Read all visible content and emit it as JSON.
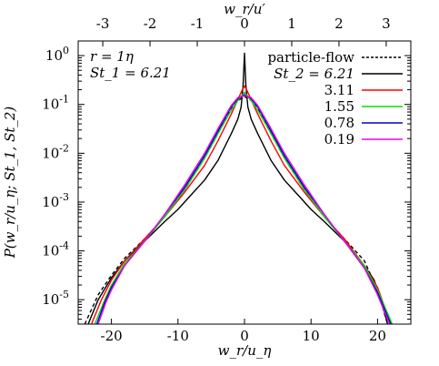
{
  "chart_data": {
    "type": "line",
    "xlabel": "w_r/u_η",
    "xlabel_top": "w_r/u′",
    "ylabel": "P(w_r/u_η; St_1, St_2)",
    "xlim": [
      -25,
      25
    ],
    "ylim_log10": [
      -5.5,
      0.3
    ],
    "y_scale": "log",
    "x_ticks": [
      -20,
      -10,
      0,
      10,
      20
    ],
    "x_tick_labels": [
      "-20",
      "-10",
      "0",
      "10",
      "20"
    ],
    "top_ticks": [
      -3,
      -2,
      -1,
      0,
      1,
      2,
      3
    ],
    "top_tick_labels": [
      "-3",
      "-2",
      "-1",
      "0",
      "1",
      "2",
      "3"
    ],
    "top_scale_ratio": 7.1,
    "y_ticks": [
      0,
      -1,
      -2,
      -3,
      -4,
      -5
    ],
    "y_tick_labels": [
      "10^0",
      "10^-1",
      "10^-2",
      "10^-3",
      "10^-4",
      "10^-5"
    ],
    "annotations": [
      "r = 1η",
      "St_1 = 6.21"
    ],
    "legend_title": "St_2 = ",
    "legend_position": "top-right",
    "series": [
      {
        "name": "particle-flow",
        "color": "#000000",
        "dashed": true,
        "points": [
          [
            -24,
            -5.5
          ],
          [
            -22,
            -4.9
          ],
          [
            -20,
            -4.5
          ],
          [
            -18,
            -4.15
          ],
          [
            -15,
            -3.75
          ],
          [
            -12,
            -3.3
          ],
          [
            -9,
            -2.75
          ],
          [
            -6,
            -2.1
          ],
          [
            -4,
            -1.6
          ],
          [
            -2,
            -1.1
          ],
          [
            -1,
            -0.92
          ],
          [
            0,
            -0.84
          ],
          [
            1,
            -0.92
          ],
          [
            2,
            -1.1
          ],
          [
            4,
            -1.6
          ],
          [
            6,
            -2.1
          ],
          [
            9,
            -2.75
          ],
          [
            12,
            -3.3
          ],
          [
            15,
            -3.75
          ],
          [
            18,
            -4.2
          ],
          [
            20,
            -4.8
          ],
          [
            21.5,
            -5.5
          ]
        ]
      },
      {
        "name": "6.21",
        "color": "#000000",
        "dashed": false,
        "points": [
          [
            -23.5,
            -5.5
          ],
          [
            -22,
            -5.0
          ],
          [
            -20,
            -4.55
          ],
          [
            -18,
            -4.2
          ],
          [
            -15,
            -3.8
          ],
          [
            -12,
            -3.4
          ],
          [
            -10,
            -3.15
          ],
          [
            -8,
            -2.85
          ],
          [
            -6,
            -2.55
          ],
          [
            -4,
            -2.15
          ],
          [
            -2,
            -1.6
          ],
          [
            -1,
            -1.3
          ],
          [
            -0.5,
            -1.05
          ],
          [
            -0.2,
            -0.6
          ],
          [
            0,
            0.05
          ],
          [
            0.2,
            -0.6
          ],
          [
            0.5,
            -1.05
          ],
          [
            1,
            -1.3
          ],
          [
            2,
            -1.6
          ],
          [
            4,
            -2.15
          ],
          [
            6,
            -2.55
          ],
          [
            8,
            -2.85
          ],
          [
            10,
            -3.15
          ],
          [
            12,
            -3.4
          ],
          [
            15,
            -3.8
          ],
          [
            18,
            -4.3
          ],
          [
            19.5,
            -4.6
          ],
          [
            20.5,
            -5.0
          ],
          [
            21.5,
            -5.5
          ]
        ]
      },
      {
        "name": "3.11",
        "color": "#ff0000",
        "dashed": false,
        "points": [
          [
            -23,
            -5.5
          ],
          [
            -21.5,
            -5.0
          ],
          [
            -20,
            -4.6
          ],
          [
            -18,
            -4.2
          ],
          [
            -15,
            -3.75
          ],
          [
            -12,
            -3.3
          ],
          [
            -9,
            -2.8
          ],
          [
            -6,
            -2.25
          ],
          [
            -4,
            -1.75
          ],
          [
            -2,
            -1.2
          ],
          [
            -1,
            -0.9
          ],
          [
            -0.4,
            -0.72
          ],
          [
            0,
            -0.62
          ],
          [
            0.4,
            -0.72
          ],
          [
            1,
            -0.9
          ],
          [
            2,
            -1.2
          ],
          [
            4,
            -1.75
          ],
          [
            6,
            -2.25
          ],
          [
            9,
            -2.8
          ],
          [
            12,
            -3.3
          ],
          [
            15,
            -3.75
          ],
          [
            18,
            -4.3
          ],
          [
            20,
            -4.75
          ],
          [
            22,
            -5.5
          ]
        ]
      },
      {
        "name": "1.55",
        "color": "#00dd00",
        "dashed": false,
        "points": [
          [
            -22.5,
            -5.5
          ],
          [
            -21,
            -5.0
          ],
          [
            -20,
            -4.7
          ],
          [
            -18,
            -4.25
          ],
          [
            -15,
            -3.8
          ],
          [
            -12,
            -3.3
          ],
          [
            -9,
            -2.75
          ],
          [
            -6,
            -2.1
          ],
          [
            -4,
            -1.6
          ],
          [
            -2,
            -1.12
          ],
          [
            -1,
            -0.92
          ],
          [
            0,
            -0.75
          ],
          [
            1,
            -0.92
          ],
          [
            2,
            -1.12
          ],
          [
            4,
            -1.6
          ],
          [
            6,
            -2.1
          ],
          [
            9,
            -2.75
          ],
          [
            12,
            -3.3
          ],
          [
            15,
            -3.8
          ],
          [
            18,
            -4.3
          ],
          [
            20,
            -4.8
          ],
          [
            22.2,
            -5.5
          ]
        ]
      },
      {
        "name": "0.78",
        "color": "#0000cc",
        "dashed": false,
        "points": [
          [
            -22.2,
            -5.5
          ],
          [
            -21,
            -5.05
          ],
          [
            -20,
            -4.75
          ],
          [
            -18,
            -4.3
          ],
          [
            -15,
            -3.8
          ],
          [
            -12,
            -3.25
          ],
          [
            -9,
            -2.7
          ],
          [
            -6,
            -2.05
          ],
          [
            -4,
            -1.55
          ],
          [
            -2,
            -1.05
          ],
          [
            -1,
            -0.88
          ],
          [
            0,
            -0.8
          ],
          [
            1,
            -0.88
          ],
          [
            2,
            -1.05
          ],
          [
            4,
            -1.55
          ],
          [
            6,
            -2.05
          ],
          [
            9,
            -2.7
          ],
          [
            12,
            -3.25
          ],
          [
            15,
            -3.8
          ],
          [
            18,
            -4.35
          ],
          [
            20,
            -4.85
          ],
          [
            22,
            -5.5
          ]
        ]
      },
      {
        "name": "0.19",
        "color": "#ee00ee",
        "dashed": false,
        "points": [
          [
            -22,
            -5.5
          ],
          [
            -20.8,
            -5.05
          ],
          [
            -20,
            -4.8
          ],
          [
            -18,
            -4.3
          ],
          [
            -15,
            -3.8
          ],
          [
            -12,
            -3.25
          ],
          [
            -9,
            -2.65
          ],
          [
            -6,
            -2.0
          ],
          [
            -4,
            -1.5
          ],
          [
            -2,
            -1.02
          ],
          [
            -1,
            -0.86
          ],
          [
            0,
            -0.82
          ],
          [
            1,
            -0.86
          ],
          [
            2,
            -1.02
          ],
          [
            4,
            -1.5
          ],
          [
            6,
            -2.0
          ],
          [
            9,
            -2.65
          ],
          [
            12,
            -3.25
          ],
          [
            15,
            -3.8
          ],
          [
            18,
            -4.35
          ],
          [
            20,
            -4.9
          ],
          [
            21.8,
            -5.5
          ]
        ]
      }
    ]
  }
}
